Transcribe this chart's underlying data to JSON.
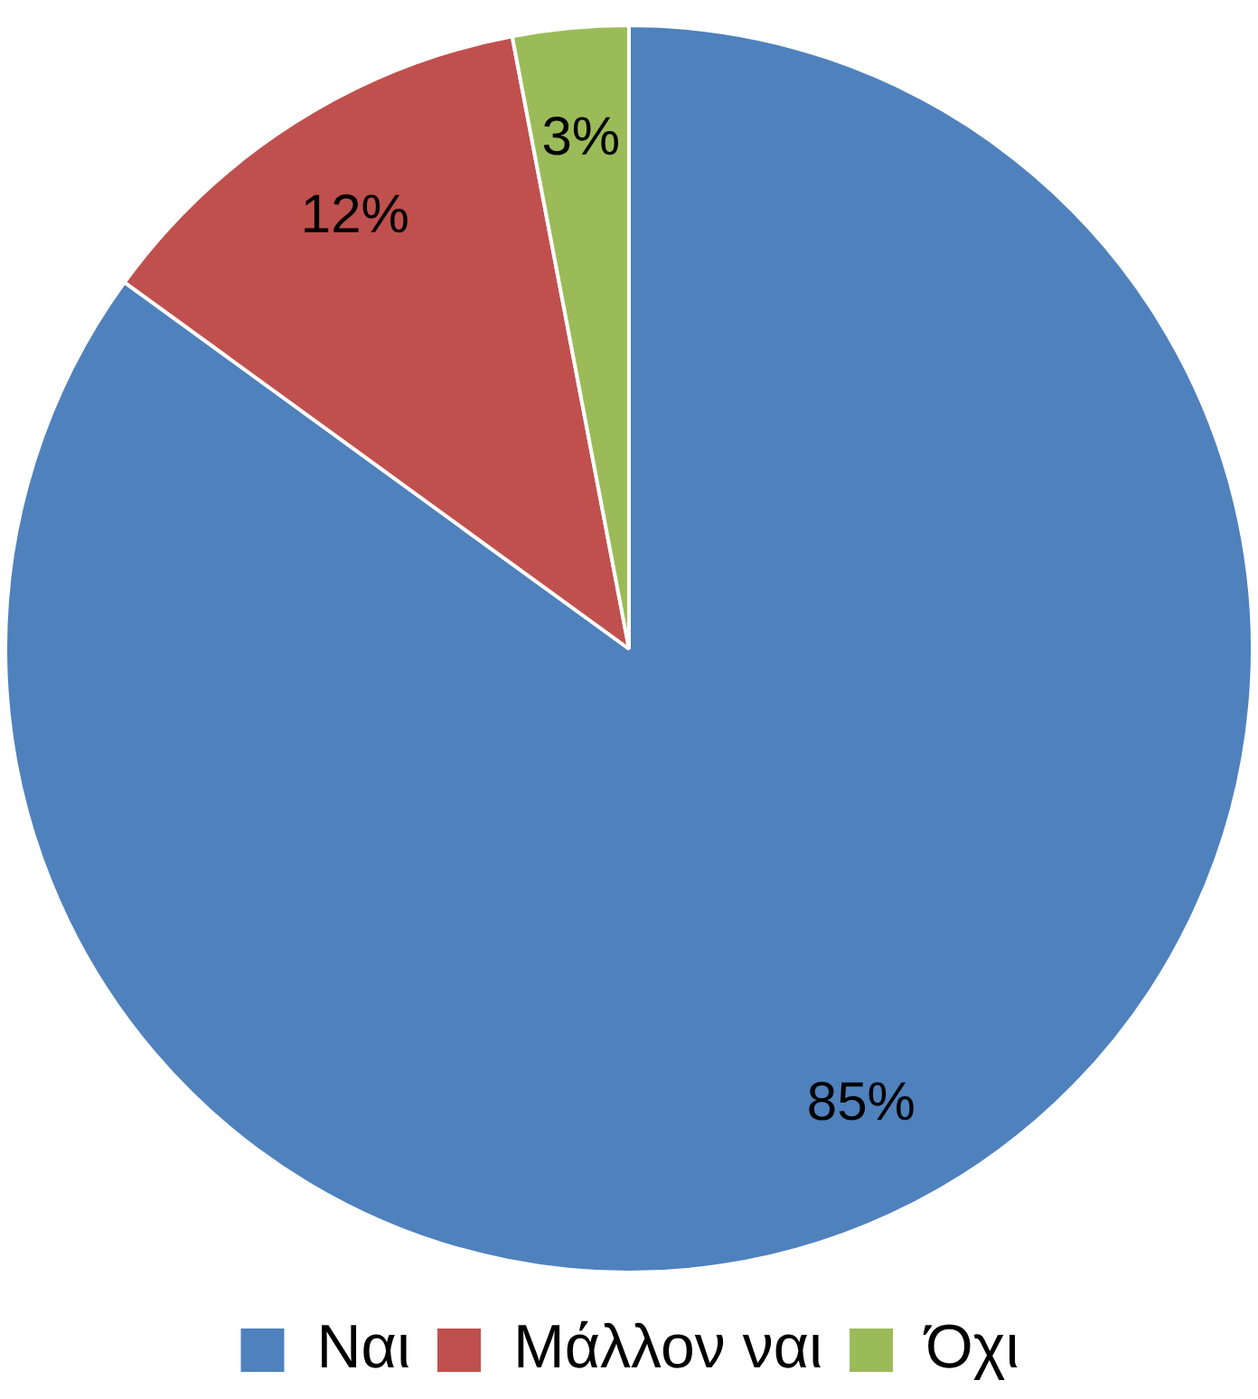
{
  "chart_data": {
    "type": "pie",
    "categories": [
      "Ναι",
      "Μάλλον ναι",
      "Όχι"
    ],
    "values": [
      85,
      12,
      3
    ],
    "colors": [
      "#4f81bd",
      "#c0504d",
      "#9bbb59"
    ],
    "value_labels": [
      "85%",
      "12%",
      "3%"
    ],
    "legend": "bottom"
  }
}
